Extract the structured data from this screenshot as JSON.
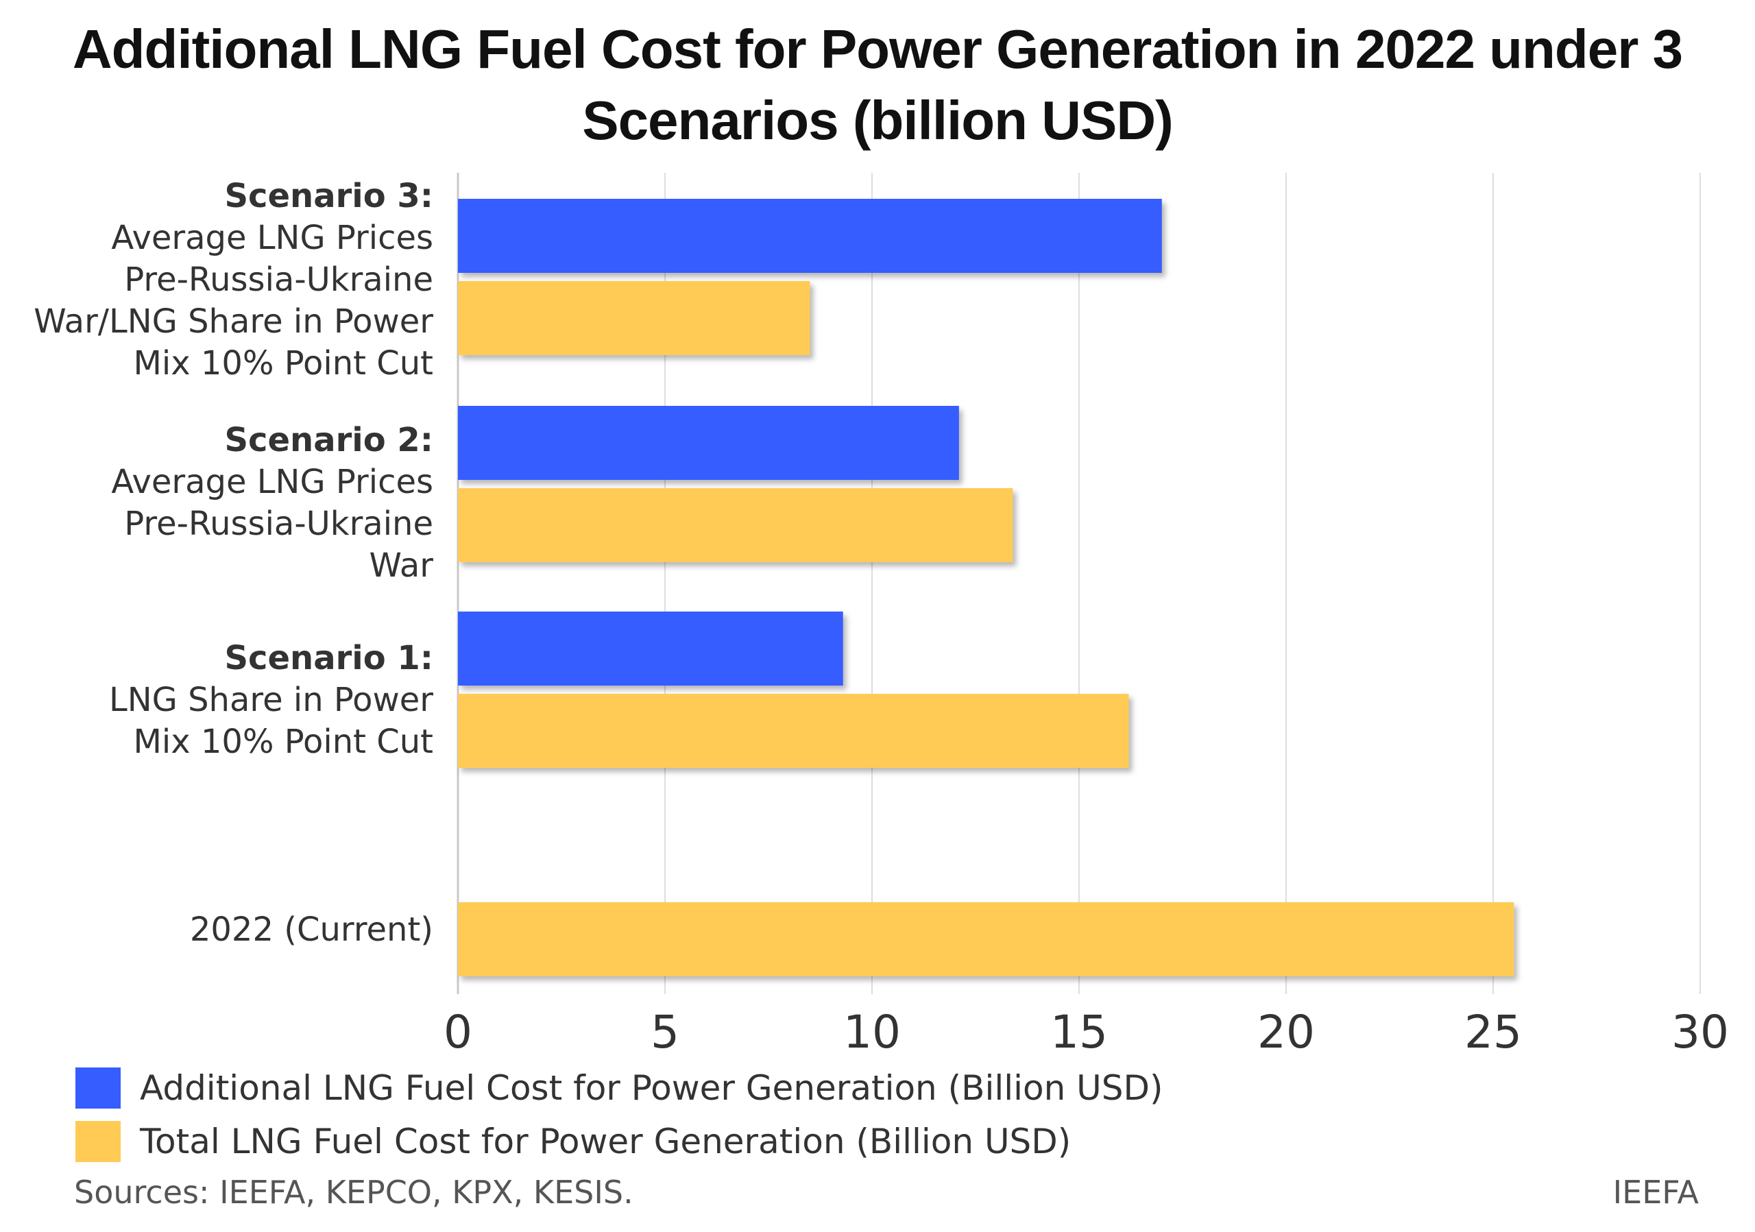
{
  "chart_data": {
    "type": "bar",
    "orientation": "horizontal",
    "title": "Additional LNG Fuel Cost for Power Generation in 2022 under 3 Scenarios (billion USD)",
    "categories": [
      {
        "bold": "Scenario 3:",
        "rest": "Average LNG Prices\nPre-Russia-Ukraine\nWar/LNG Share in Power\nMix 10% Point Cut"
      },
      {
        "bold": "Scenario 2:",
        "rest": "Average LNG Prices\nPre-Russia-Ukraine\nWar"
      },
      {
        "bold": "Scenario 1:",
        "rest": "LNG Share in Power\nMix 10% Point Cut"
      },
      {
        "bold": "",
        "rest": "2022 (Current)"
      }
    ],
    "series": [
      {
        "name": "Additional LNG Fuel Cost for Power Generation (Billion USD)",
        "color": "#355dff",
        "values": [
          17.0,
          12.1,
          9.3,
          0
        ]
      },
      {
        "name": "Total LNG Fuel Cost for Power Generation (Billion USD)",
        "color": "#ffcb55",
        "values": [
          8.5,
          13.4,
          16.2,
          25.5
        ]
      }
    ],
    "xlim": [
      0,
      30
    ],
    "xticks": [
      "0",
      "5",
      "10",
      "15",
      "20",
      "25",
      "30"
    ],
    "grid": true,
    "legend_position": "bottom-left"
  },
  "footer": {
    "sources": "Sources: IEEFA, KEPCO, KPX, KESIS.",
    "credit": "IEEFA"
  }
}
